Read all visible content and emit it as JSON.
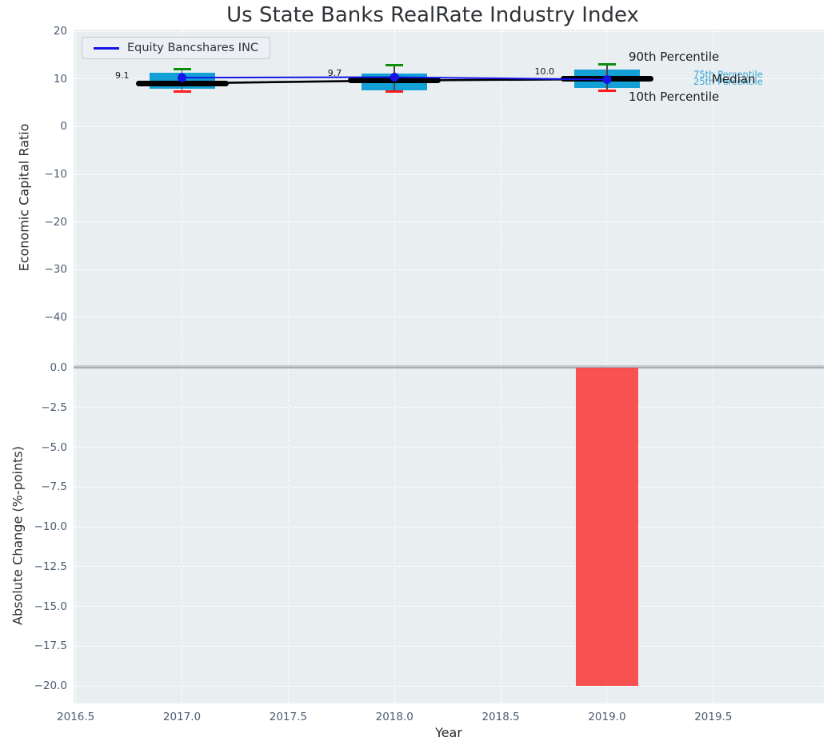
{
  "colors": {
    "axes_bg": "#e9eef0",
    "grid": "#ffffff",
    "box": "#13a0d6",
    "cap_90th": "#0b8e0b",
    "cap_10th": "#fb1b1b",
    "whisker": "#44484c",
    "median_line": "#000000",
    "equity_line": "#1414e8",
    "bar": "#fa3b3b",
    "cyan_label": "#35a6d9",
    "tick_text": "#4c5b70"
  },
  "chart_data": [
    {
      "type": "box",
      "title": "Us State Banks RealRate Industry Index",
      "ylabel": "Economic Capital Ratio",
      "ylim": [
        -50.3,
        20.4
      ],
      "xlim": [
        2016.49,
        2020.02
      ],
      "grid": true,
      "legend_position": "upper left",
      "yticks": [
        20,
        10,
        0,
        -10,
        -20,
        -30,
        -40
      ],
      "ytick_labels": [
        "20",
        "10",
        "0",
        "−10",
        "−20",
        "−30",
        "−40"
      ],
      "xticks": [
        2016.5,
        2017.0,
        2017.5,
        2018.0,
        2018.5,
        2019.0,
        2019.5
      ],
      "boxes": [
        {
          "year": 2017,
          "p90": 12.1,
          "p75": 11.3,
          "median": 9.1,
          "p25": 7.9,
          "p10": 7.4,
          "label": "9.1"
        },
        {
          "year": 2018,
          "p90": 13.0,
          "p75": 11.2,
          "median": 9.7,
          "p25": 7.7,
          "p10": 7.4,
          "label": "9.7"
        },
        {
          "year": 2019,
          "p90": 13.1,
          "p75": 12.0,
          "median": 10.0,
          "p25": 8.2,
          "p10": 7.5,
          "label": "10.0"
        }
      ],
      "series": [
        {
          "name": "Equity Bancshares INC",
          "x": [
            2017,
            2018,
            2019
          ],
          "values": [
            10.3,
            10.4,
            9.9
          ]
        }
      ],
      "percentile_labels": {
        "p90": "90th Percentile",
        "p75": "75th Percentile",
        "p25": "25th Percentile",
        "median": "Median",
        "p10": "10th Percentile"
      }
    },
    {
      "type": "bar",
      "ylabel": "Absolute Change (%-points)",
      "xlabel": "Year",
      "ylim": [
        -21.1,
        0
      ],
      "grid": true,
      "yticks": [
        0,
        -2.5,
        -5,
        -7.5,
        -10,
        -12.5,
        -15,
        -17.5,
        -20
      ],
      "ytick_labels": [
        "0.0",
        "−2.5",
        "−5.0",
        "−7.5",
        "−10.0",
        "−12.5",
        "−15.0",
        "−17.5",
        "−20.0"
      ],
      "xtick_labels": [
        "2016.5",
        "2017.0",
        "2017.5",
        "2018.0",
        "2018.5",
        "2019.0",
        "2019.5"
      ],
      "x": [
        2019
      ],
      "values": [
        -20.0
      ]
    }
  ]
}
